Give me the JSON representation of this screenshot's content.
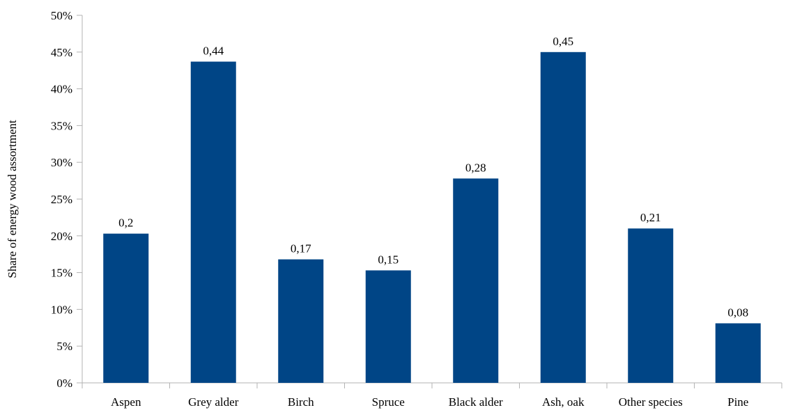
{
  "chart_data": {
    "type": "bar",
    "categories": [
      "Aspen",
      "Grey alder",
      "Birch",
      "Spruce",
      "Black alder",
      "Ash, oak",
      "Other species",
      "Pine"
    ],
    "values": [
      0.203,
      0.437,
      0.168,
      0.153,
      0.278,
      0.45,
      0.21,
      0.081
    ],
    "data_labels": [
      "0,2",
      "0,44",
      "0,17",
      "0,15",
      "0,28",
      "0,45",
      "0,21",
      "0,08"
    ],
    "ylabel": "Share of energy wood assortment",
    "xlabel": "",
    "ylim": [
      0,
      0.5
    ],
    "y_ticks": [
      0,
      0.05,
      0.1,
      0.15,
      0.2,
      0.25,
      0.3,
      0.35,
      0.4,
      0.45,
      0.5
    ],
    "y_tick_labels": [
      "0%",
      "5%",
      "10%",
      "15%",
      "20%",
      "25%",
      "30%",
      "35%",
      "40%",
      "45%",
      "50%"
    ],
    "bar_color": "#004586",
    "grid": false,
    "legend": "none"
  }
}
